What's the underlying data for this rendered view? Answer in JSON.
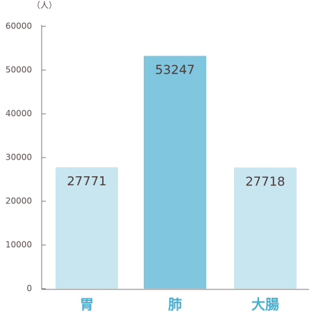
{
  "chart_data": {
    "type": "bar",
    "unit": "（人）",
    "categories": [
      "胃",
      "肺",
      "大腸"
    ],
    "values": [
      27771,
      53247,
      27718
    ],
    "colors": [
      "#c8e6f0",
      "#80c6de",
      "#c8e6f0"
    ],
    "ylim": [
      0,
      60000
    ],
    "yticks": [
      0,
      10000,
      20000,
      30000,
      40000,
      50000,
      60000
    ]
  }
}
